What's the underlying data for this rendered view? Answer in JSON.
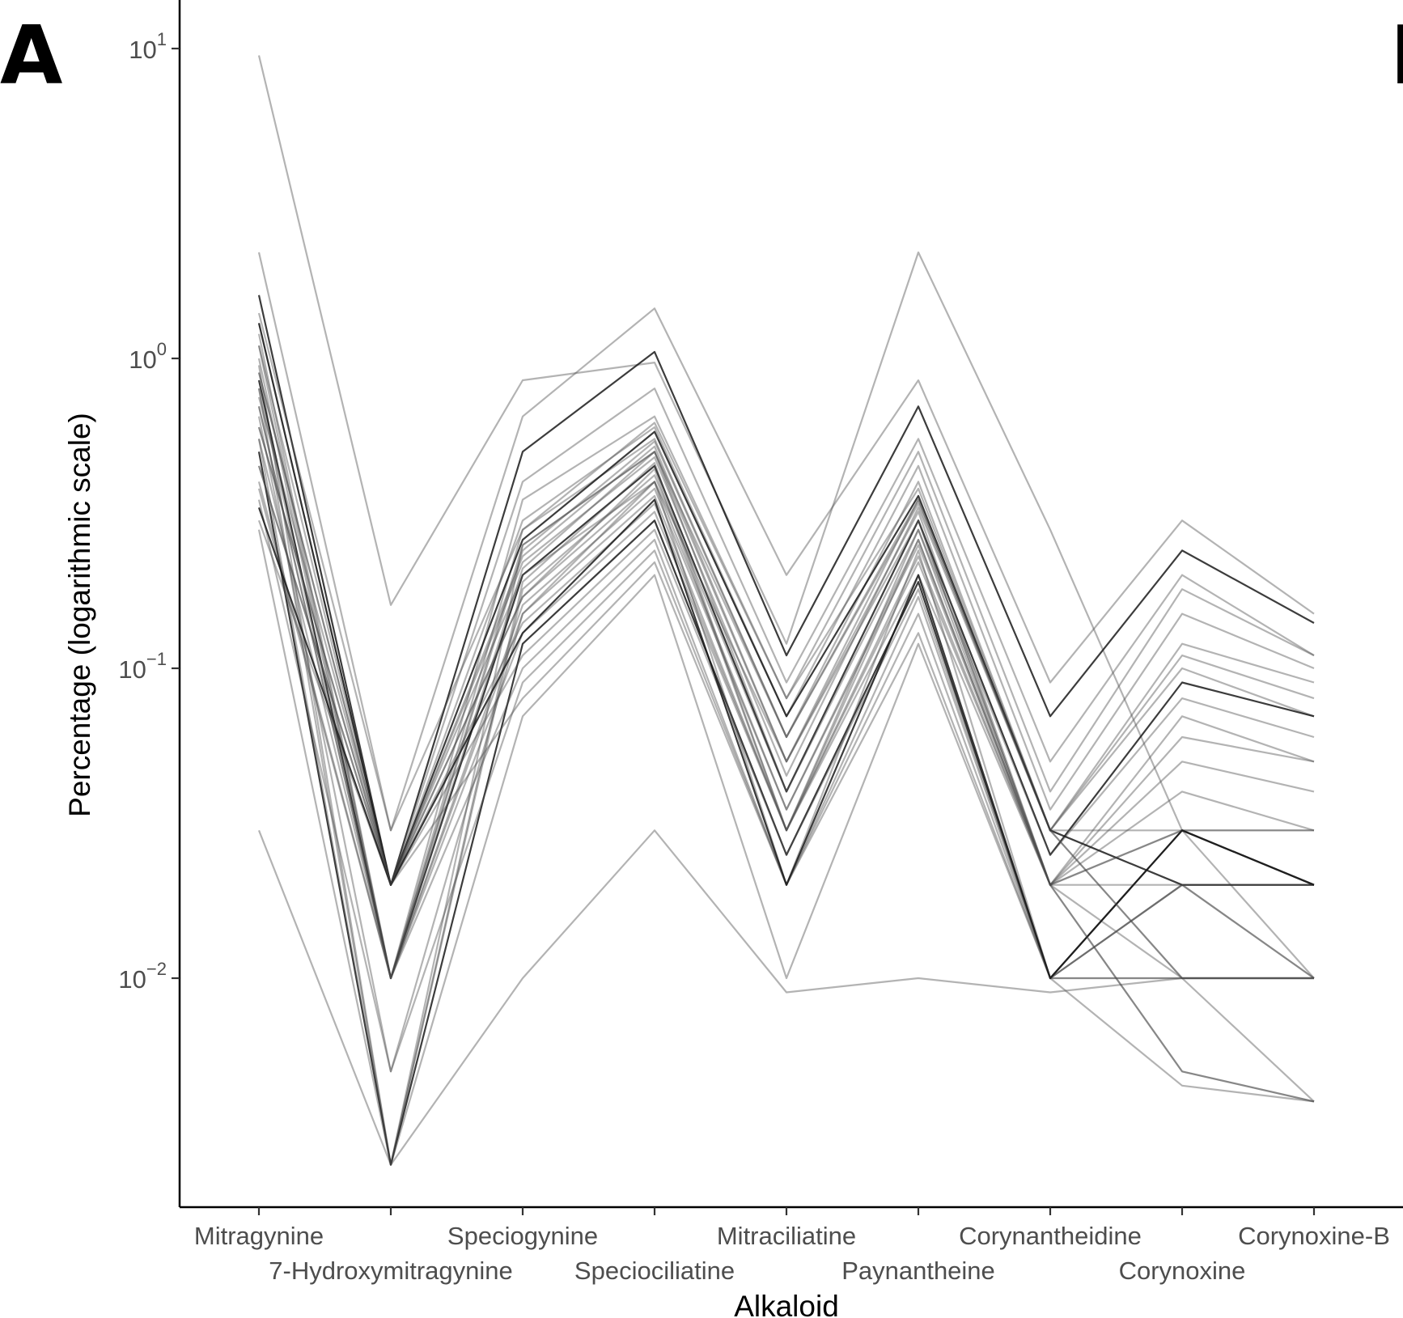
{
  "panel_labels": {
    "left": "A",
    "right_partial": "B"
  },
  "chart_data": {
    "type": "line",
    "subtype": "parallel-coordinates",
    "title": "",
    "xlabel": "Alkaloid",
    "ylabel": "Percentage (logarithmic scale)",
    "yscale": "log",
    "ylim": [
      0.0022,
      15
    ],
    "yticks": [
      {
        "value": 0.01,
        "base": "10",
        "exp": "−2"
      },
      {
        "value": 0.1,
        "base": "10",
        "exp": "−1"
      },
      {
        "value": 1,
        "base": "10",
        "exp": "0"
      },
      {
        "value": 10,
        "base": "10",
        "exp": "1"
      }
    ],
    "categories": [
      "Mitragynine",
      "7-Hydroxymitragynine",
      "Speciogynine",
      "Speciociliatine",
      "Mitraciliatine",
      "Paynantheine",
      "Corynantheidine",
      "Corynoxine",
      "Corynoxine-B"
    ],
    "grid": false,
    "legend": "none",
    "line_color": "#4a4a4a",
    "line_color_dark": "#1a1a1a",
    "series": [
      {
        "values": [
          9.5,
          0.16,
          0.85,
          0.97,
          0.12,
          2.2,
          0.28,
          0.03,
          0.01
        ]
      },
      {
        "values": [
          0.03,
          0.0025,
          0.01,
          0.03,
          0.009,
          0.01,
          0.009,
          0.01,
          0.01
        ]
      },
      {
        "values": [
          2.2,
          0.03,
          0.65,
          1.45,
          0.2,
          0.85,
          0.09,
          0.3,
          0.15
        ]
      },
      {
        "values": [
          1.6,
          0.02,
          0.5,
          1.05,
          0.11,
          0.7,
          0.07,
          0.24,
          0.14
        ]
      },
      {
        "values": [
          1.3,
          0.02,
          0.4,
          0.8,
          0.09,
          0.55,
          0.05,
          0.2,
          0.11
        ]
      },
      {
        "values": [
          1.2,
          0.01,
          0.35,
          0.65,
          0.08,
          0.5,
          0.04,
          0.18,
          0.11
        ]
      },
      {
        "values": [
          1.1,
          0.02,
          0.3,
          0.6,
          0.07,
          0.45,
          0.035,
          0.15,
          0.1
        ]
      },
      {
        "values": [
          1.0,
          0.01,
          0.28,
          0.55,
          0.06,
          0.4,
          0.03,
          0.12,
          0.09
        ]
      },
      {
        "values": [
          0.95,
          0.0025,
          0.25,
          0.5,
          0.05,
          0.35,
          0.03,
          0.11,
          0.08
        ]
      },
      {
        "values": [
          0.9,
          0.02,
          0.22,
          0.48,
          0.045,
          0.33,
          0.03,
          0.1,
          0.07
        ]
      },
      {
        "values": [
          0.85,
          0.01,
          0.2,
          0.45,
          0.04,
          0.3,
          0.025,
          0.09,
          0.07
        ]
      },
      {
        "values": [
          0.8,
          0.0025,
          0.18,
          0.42,
          0.04,
          0.28,
          0.025,
          0.08,
          0.06
        ]
      },
      {
        "values": [
          0.75,
          0.02,
          0.17,
          0.4,
          0.035,
          0.26,
          0.02,
          0.07,
          0.05
        ]
      },
      {
        "values": [
          0.7,
          0.01,
          0.16,
          0.38,
          0.035,
          0.25,
          0.02,
          0.06,
          0.05
        ]
      },
      {
        "values": [
          0.65,
          0.005,
          0.15,
          0.36,
          0.03,
          0.23,
          0.02,
          0.05,
          0.04
        ]
      },
      {
        "values": [
          0.6,
          0.02,
          0.14,
          0.34,
          0.03,
          0.22,
          0.02,
          0.04,
          0.03
        ]
      },
      {
        "values": [
          0.55,
          0.01,
          0.13,
          0.32,
          0.03,
          0.2,
          0.02,
          0.03,
          0.03
        ]
      },
      {
        "values": [
          0.5,
          0.0025,
          0.12,
          0.3,
          0.025,
          0.19,
          0.01,
          0.03,
          0.02
        ]
      },
      {
        "values": [
          0.45,
          0.02,
          0.11,
          0.28,
          0.025,
          0.18,
          0.01,
          0.02,
          0.02
        ]
      },
      {
        "values": [
          0.4,
          0.01,
          0.1,
          0.26,
          0.02,
          0.17,
          0.01,
          0.02,
          0.01
        ]
      },
      {
        "values": [
          0.35,
          0.005,
          0.09,
          0.24,
          0.02,
          0.15,
          0.01,
          0.01,
          0.01
        ]
      },
      {
        "values": [
          0.3,
          0.02,
          0.08,
          0.22,
          0.02,
          0.13,
          0.01,
          0.01,
          0.01
        ]
      },
      {
        "values": [
          0.28,
          0.0025,
          0.07,
          0.2,
          0.01,
          0.12,
          0.01,
          0.0045,
          0.004
        ]
      },
      {
        "values": [
          1.4,
          0.03,
          0.28,
          0.62,
          0.08,
          0.38,
          0.03,
          0.03,
          0.02
        ]
      },
      {
        "values": [
          1.3,
          0.02,
          0.26,
          0.58,
          0.07,
          0.36,
          0.03,
          0.02,
          0.02
        ]
      },
      {
        "values": [
          1.1,
          0.01,
          0.24,
          0.54,
          0.06,
          0.34,
          0.03,
          0.01,
          0.01
        ]
      },
      {
        "values": [
          0.9,
          0.02,
          0.23,
          0.52,
          0.05,
          0.32,
          0.02,
          0.02,
          0.01
        ]
      },
      {
        "values": [
          0.7,
          0.01,
          0.21,
          0.5,
          0.04,
          0.3,
          0.02,
          0.01,
          0.004
        ]
      },
      {
        "values": [
          0.55,
          0.0025,
          0.19,
          0.46,
          0.03,
          0.28,
          0.02,
          0.005,
          0.004
        ]
      },
      {
        "values": [
          0.45,
          0.02,
          0.17,
          0.44,
          0.03,
          0.26,
          0.02,
          0.03,
          0.03
        ]
      },
      {
        "values": [
          0.38,
          0.01,
          0.15,
          0.4,
          0.02,
          0.24,
          0.01,
          0.02,
          0.02
        ]
      },
      {
        "values": [
          0.33,
          0.02,
          0.13,
          0.35,
          0.02,
          0.2,
          0.01,
          0.03,
          0.02
        ]
      },
      {
        "values": [
          0.6,
          0.02,
          0.2,
          0.4,
          0.05,
          0.3,
          0.02,
          0.005,
          0.004
        ]
      },
      {
        "values": [
          0.8,
          0.01,
          0.25,
          0.5,
          0.06,
          0.35,
          0.03,
          0.01,
          0.01
        ]
      }
    ]
  }
}
